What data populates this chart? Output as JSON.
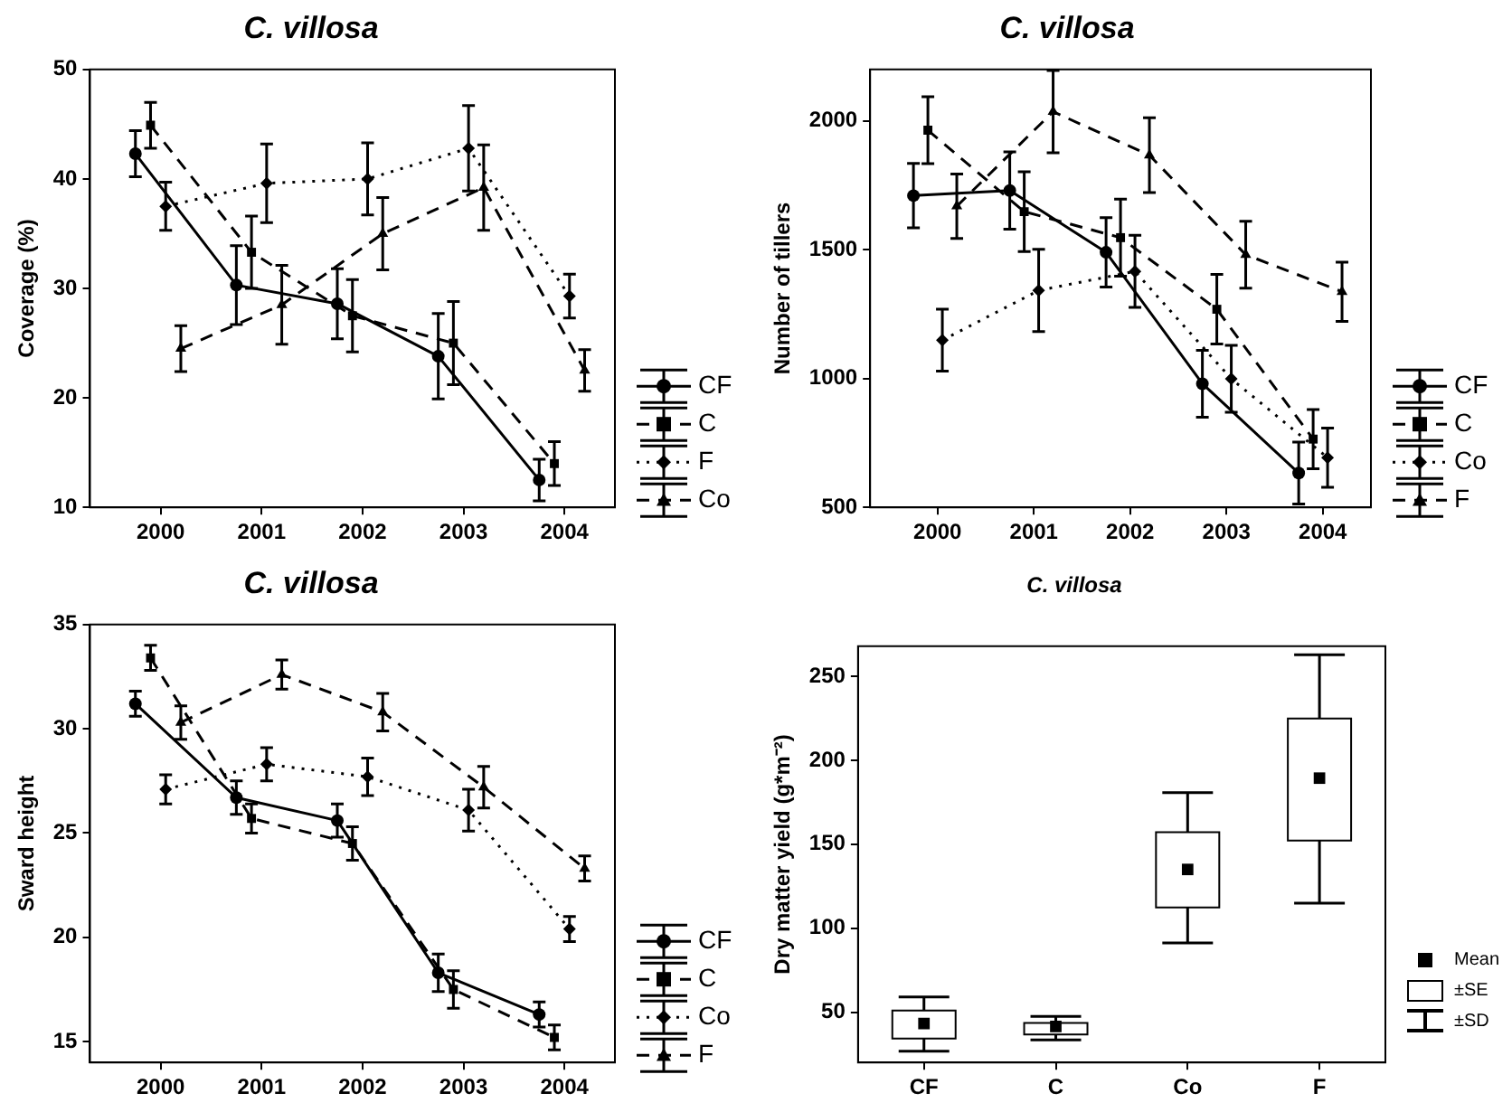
{
  "chart_data": [
    {
      "type": "line",
      "title": "C. villosa",
      "ylabel": "Coverage (%)",
      "xlim": [
        1999.3,
        2004.5
      ],
      "xticks": [
        2000,
        2001,
        2002,
        2003,
        2004
      ],
      "ylim": [
        10,
        50
      ],
      "yticks": [
        10,
        20,
        30,
        40,
        50
      ],
      "legend": "right",
      "series": [
        {
          "name": "CF",
          "color": "#000000",
          "line_style": "solid",
          "marker": "circle",
          "x": [
            1999.75,
            2000.75,
            2001.75,
            2002.75,
            2003.75
          ],
          "values": [
            42.3,
            30.3,
            28.6,
            23.8,
            12.5
          ],
          "errors": [
            2.1,
            3.6,
            3.2,
            3.9,
            1.9
          ]
        },
        {
          "name": "C",
          "color": "#000000",
          "line_style": "dashed",
          "marker": "square",
          "x": [
            1999.9,
            2000.9,
            2001.9,
            2002.9,
            2003.9
          ],
          "values": [
            44.9,
            33.3,
            27.5,
            25,
            14
          ],
          "errors": [
            2.1,
            3.3,
            3.3,
            3.8,
            2
          ]
        },
        {
          "name": "F",
          "color": "#000000",
          "line_style": "dotted",
          "marker": "diamond",
          "x": [
            2000.05,
            2001.05,
            2002.05,
            2003.05,
            2004.05
          ],
          "values": [
            37.5,
            39.6,
            40,
            42.8,
            29.3
          ],
          "errors": [
            2.2,
            3.6,
            3.3,
            3.9,
            2
          ]
        },
        {
          "name": "Co",
          "color": "#000000",
          "line_style": "dashed",
          "marker": "triangle",
          "x": [
            2000.2,
            2001.2,
            2002.2,
            2003.2,
            2004.2
          ],
          "values": [
            24.5,
            28.5,
            35,
            39.2,
            22.5
          ],
          "errors": [
            2.1,
            3.6,
            3.3,
            3.9,
            1.9
          ]
        }
      ]
    },
    {
      "type": "line",
      "title": "C. villosa",
      "ylabel": "Number of tillers",
      "xlim": [
        1999.3,
        2004.5
      ],
      "xticks": [
        2000,
        2001,
        2002,
        2003,
        2004
      ],
      "ylim": [
        500,
        2200
      ],
      "yticks": [
        500,
        1000,
        1500,
        2000
      ],
      "legend": "right",
      "series": [
        {
          "name": "CF",
          "color": "#000000",
          "line_style": "solid",
          "marker": "circle",
          "x": [
            1999.75,
            2000.75,
            2001.75,
            2002.75,
            2003.75
          ],
          "values": [
            1710,
            1730,
            1490,
            980,
            633
          ],
          "errors": [
            125,
            150,
            135,
            130,
            120
          ]
        },
        {
          "name": "C",
          "color": "#000000",
          "line_style": "dashed",
          "marker": "square",
          "x": [
            1999.9,
            2000.9,
            2001.9,
            2002.9,
            2003.9
          ],
          "values": [
            1964,
            1648,
            1547,
            1269,
            765
          ],
          "errors": [
            130,
            155,
            150,
            135,
            115
          ]
        },
        {
          "name": "Co",
          "color": "#000000",
          "line_style": "dotted",
          "marker": "diamond",
          "x": [
            2000.05,
            2001.05,
            2002.05,
            2003.05,
            2004.05
          ],
          "values": [
            1149,
            1342,
            1416,
            999,
            693
          ],
          "errors": [
            120,
            160,
            140,
            130,
            115
          ]
        },
        {
          "name": "F",
          "color": "#000000",
          "line_style": "dashed",
          "marker": "triangle",
          "x": [
            2000.2,
            2001.2,
            2002.2,
            2003.2,
            2004.2
          ],
          "values": [
            1669,
            2036,
            1867,
            1481,
            1337
          ],
          "errors": [
            125,
            160,
            145,
            130,
            115
          ]
        }
      ]
    },
    {
      "type": "line",
      "title": "C. villosa",
      "ylabel": "Sward height",
      "xlim": [
        1999.3,
        2004.5
      ],
      "xticks": [
        2000,
        2001,
        2002,
        2003,
        2004
      ],
      "ylim": [
        14,
        35
      ],
      "yticks": [
        15,
        20,
        25,
        30,
        35
      ],
      "legend": "right",
      "series": [
        {
          "name": "CF",
          "color": "#000000",
          "line_style": "solid",
          "marker": "circle",
          "x": [
            1999.75,
            2000.75,
            2001.75,
            2002.75,
            2003.75
          ],
          "values": [
            31.2,
            26.7,
            25.6,
            18.3,
            16.3
          ],
          "errors": [
            0.6,
            0.8,
            0.8,
            0.9,
            0.6
          ]
        },
        {
          "name": "C",
          "color": "#000000",
          "line_style": "dashed",
          "marker": "square",
          "x": [
            1999.9,
            2000.9,
            2001.9,
            2002.9,
            2003.9
          ],
          "values": [
            33.4,
            25.7,
            24.5,
            17.5,
            15.2
          ],
          "errors": [
            0.6,
            0.7,
            0.8,
            0.9,
            0.6
          ]
        },
        {
          "name": "Co",
          "color": "#000000",
          "line_style": "dotted",
          "marker": "diamond",
          "x": [
            2000.05,
            2001.05,
            2002.05,
            2003.05,
            2004.05
          ],
          "values": [
            27.1,
            28.3,
            27.7,
            26.1,
            20.4
          ],
          "errors": [
            0.7,
            0.8,
            0.9,
            1,
            0.6
          ]
        },
        {
          "name": "F",
          "color": "#000000",
          "line_style": "dashed",
          "marker": "triangle",
          "x": [
            2000.2,
            2001.2,
            2002.2,
            2003.2,
            2004.2
          ],
          "values": [
            30.3,
            32.6,
            30.8,
            27.2,
            23.3
          ],
          "errors": [
            0.8,
            0.7,
            0.9,
            1,
            0.6
          ]
        }
      ]
    },
    {
      "type": "box",
      "title": "C. villosa",
      "ylabel": "Dry matter yield (g*m⁻²)",
      "categories": [
        "CF",
        "C",
        "Co",
        "F"
      ],
      "ylim": [
        20,
        268
      ],
      "yticks": [
        50,
        100,
        150,
        200,
        250
      ],
      "annotations": [
        "Mean",
        "±SE",
        "±SD"
      ],
      "color": "#ffffff",
      "boxes": [
        {
          "low": 26.7,
          "q1": 34.2,
          "q3": 51,
          "high": 59,
          "mean": 43.2
        },
        {
          "low": 33.5,
          "q1": 36.7,
          "q3": 43.5,
          "high": 47.5,
          "mean": 41.4
        },
        {
          "low": 91.2,
          "q1": 112.4,
          "q3": 157.2,
          "high": 180.8,
          "mean": 135
        },
        {
          "low": 114.9,
          "q1": 152.2,
          "q3": 224.9,
          "high": 262.9,
          "mean": 189.4
        }
      ]
    }
  ]
}
